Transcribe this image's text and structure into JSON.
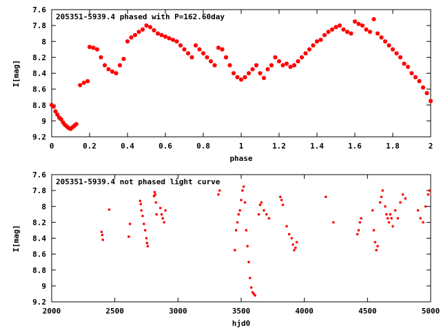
{
  "colors": {
    "points": "#ff0000",
    "axes": "#000000",
    "background": "#ffffff"
  },
  "chart_data": [
    {
      "type": "scatter",
      "title": "205351-5939.4 phased with P=162.60day",
      "xlabel": "phase",
      "ylabel": "I[mag]",
      "xlim": [
        0,
        2
      ],
      "ylim": [
        7.6,
        9.2
      ],
      "y_inverted": true,
      "x_ticks": [
        "0",
        "0.2",
        "0.4",
        "0.6",
        "0.8",
        "1",
        "1.2",
        "1.4",
        "1.6",
        "1.8",
        "2"
      ],
      "y_ticks": [
        "7.6",
        "7.8",
        "8",
        "8.2",
        "8.4",
        "8.6",
        "8.8",
        "9",
        "9.2"
      ],
      "grid": false,
      "marker": "star",
      "series": [
        {
          "x": [
            0.0,
            0.01,
            0.02,
            0.03,
            0.04,
            0.05,
            0.06,
            0.07,
            0.08,
            0.09,
            0.1,
            0.11,
            0.12,
            0.13,
            0.15,
            0.17,
            0.19,
            0.2,
            0.22,
            0.24,
            0.26,
            0.28,
            0.3,
            0.32,
            0.34,
            0.36,
            0.38,
            0.4,
            0.42,
            0.44,
            0.46,
            0.48,
            0.5,
            0.52,
            0.54,
            0.56,
            0.58,
            0.6,
            0.62,
            0.64,
            0.66,
            0.68,
            0.7,
            0.72,
            0.74,
            0.76,
            0.78,
            0.8,
            0.82,
            0.84,
            0.86,
            0.88,
            0.9,
            0.92,
            0.94,
            0.96,
            0.98,
            1.0,
            1.02,
            1.04,
            1.06,
            1.08,
            1.1,
            1.12,
            1.14,
            1.16,
            1.18,
            1.2,
            1.22,
            1.24,
            1.26,
            1.28,
            1.3,
            1.32,
            1.34,
            1.36,
            1.38,
            1.4,
            1.42,
            1.44,
            1.46,
            1.48,
            1.5,
            1.52,
            1.54,
            1.56,
            1.58,
            1.6,
            1.62,
            1.64,
            1.66,
            1.68,
            1.7,
            1.72,
            1.74,
            1.76,
            1.78,
            1.8,
            1.82,
            1.84,
            1.86,
            1.88,
            1.9,
            1.92,
            1.94,
            1.96,
            1.98,
            2.0
          ],
          "y": [
            8.8,
            8.82,
            8.88,
            8.92,
            8.96,
            8.98,
            9.02,
            9.05,
            9.07,
            9.09,
            9.1,
            9.08,
            9.06,
            9.04,
            8.55,
            8.52,
            8.5,
            8.07,
            8.08,
            8.1,
            8.2,
            8.3,
            8.35,
            8.38,
            8.4,
            8.3,
            8.22,
            8.0,
            7.95,
            7.92,
            7.88,
            7.85,
            7.8,
            7.82,
            7.86,
            7.9,
            7.92,
            7.94,
            7.96,
            7.98,
            8.0,
            8.05,
            8.1,
            8.15,
            8.2,
            8.05,
            8.1,
            8.15,
            8.2,
            8.25,
            8.3,
            8.08,
            8.1,
            8.2,
            8.3,
            8.4,
            8.45,
            8.48,
            8.45,
            8.4,
            8.35,
            8.3,
            8.4,
            8.46,
            8.35,
            8.3,
            8.2,
            8.25,
            8.3,
            8.28,
            8.32,
            8.3,
            8.25,
            8.2,
            8.15,
            8.1,
            8.05,
            8.0,
            7.98,
            7.92,
            7.88,
            7.85,
            7.82,
            7.8,
            7.85,
            7.88,
            7.9,
            7.75,
            7.78,
            7.8,
            7.85,
            7.88,
            7.72,
            7.9,
            7.95,
            8.0,
            8.05,
            8.1,
            8.15,
            8.2,
            8.28,
            8.32,
            8.4,
            8.45,
            8.5,
            8.58,
            8.65,
            8.75
          ]
        }
      ]
    },
    {
      "type": "scatter",
      "title": "205351-5939.4 not phased light curve",
      "xlabel": "hjd0",
      "ylabel": "I[mag]",
      "xlim": [
        2000,
        5000
      ],
      "ylim": [
        7.6,
        9.2
      ],
      "y_inverted": true,
      "x_ticks": [
        "2000",
        "2500",
        "3000",
        "3500",
        "4000",
        "4500",
        "5000"
      ],
      "y_ticks": [
        "7.6",
        "7.8",
        "8",
        "8.2",
        "8.4",
        "8.6",
        "8.8",
        "9",
        "9.2"
      ],
      "grid": false,
      "marker": "dot",
      "series": [
        {
          "x": [
            2395,
            2400,
            2405,
            2455,
            2610,
            2620,
            2700,
            2705,
            2710,
            2720,
            2730,
            2740,
            2750,
            2755,
            2760,
            2810,
            2815,
            2820,
            2825,
            2830,
            2860,
            2870,
            2880,
            2890,
            2900,
            3320,
            3330,
            3450,
            3460,
            3470,
            3480,
            3490,
            3500,
            3510,
            3520,
            3530,
            3540,
            3550,
            3560,
            3570,
            3580,
            3590,
            3600,
            3610,
            3640,
            3650,
            3660,
            3680,
            3700,
            3720,
            3810,
            3820,
            3830,
            3860,
            3880,
            3900,
            3910,
            3920,
            3930,
            3940,
            4170,
            4230,
            4420,
            4430,
            4440,
            4450,
            4540,
            4550,
            4560,
            4570,
            4580,
            4600,
            4610,
            4620,
            4640,
            4650,
            4660,
            4670,
            4680,
            4690,
            4700,
            4720,
            4740,
            4760,
            4780,
            4800,
            4900,
            4920,
            4940,
            4960,
            4980,
            4990
          ],
          "y": [
            8.32,
            8.36,
            8.42,
            8.04,
            8.38,
            8.22,
            7.93,
            7.97,
            8.05,
            8.12,
            8.22,
            8.3,
            8.4,
            8.46,
            8.5,
            7.87,
            7.82,
            7.85,
            7.95,
            8.1,
            8.02,
            8.1,
            8.15,
            8.2,
            8.05,
            7.85,
            7.8,
            8.55,
            8.3,
            8.2,
            8.1,
            8.05,
            7.92,
            7.8,
            7.75,
            7.95,
            8.3,
            8.5,
            8.7,
            8.9,
            9.02,
            9.08,
            9.1,
            9.12,
            8.1,
            7.98,
            7.95,
            8.05,
            8.1,
            8.15,
            7.88,
            7.92,
            7.98,
            8.25,
            8.35,
            8.4,
            8.48,
            8.55,
            8.52,
            8.45,
            7.88,
            8.2,
            8.35,
            8.3,
            8.2,
            8.15,
            8.05,
            8.3,
            8.45,
            8.55,
            8.5,
            7.95,
            7.88,
            7.8,
            8.0,
            8.1,
            8.15,
            8.2,
            8.1,
            8.15,
            8.25,
            8.05,
            8.15,
            7.95,
            7.85,
            7.9,
            8.05,
            8.15,
            8.2,
            8.0,
            7.85,
            7.8
          ]
        }
      ]
    }
  ]
}
